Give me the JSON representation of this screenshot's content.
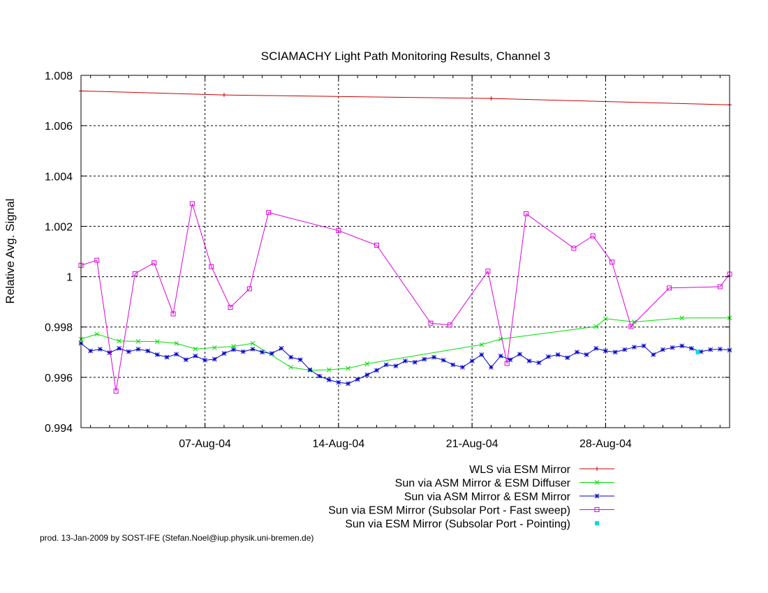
{
  "chart_data": {
    "type": "line",
    "title": "SCIAMACHY Light Path Monitoring Results, Channel 3",
    "xlabel": "",
    "ylabel": "Relative Avg. Signal",
    "xlim": [
      "2004-07-31T12:00",
      "2004-09-03T12:00"
    ],
    "ylim": [
      0.994,
      1.008
    ],
    "x_ticks": [
      "2004-08-07",
      "2004-08-14",
      "2004-08-21",
      "2004-08-28"
    ],
    "x_tick_labels": [
      "07-Aug-04",
      "14-Aug-04",
      "21-Aug-04",
      "28-Aug-04"
    ],
    "y_ticks": [
      0.994,
      0.996,
      0.998,
      1,
      1.002,
      1.004,
      1.006,
      1.008
    ],
    "y_tick_labels": [
      "0.994",
      "0.996",
      "0.998",
      "1",
      "1.002",
      "1.004",
      "1.006",
      "1.008"
    ],
    "grid": true,
    "legend_position": "bottom-right",
    "series": [
      {
        "name": "WLS via ESM Mirror",
        "color": "#cc0000",
        "marker": "plus",
        "x": [
          "2004-07-31T12:00",
          "2004-08-08T00:00",
          "2004-08-22T00:00",
          "2004-09-03T12:00"
        ],
        "y": [
          1.00738,
          1.00722,
          1.00708,
          1.00683
        ]
      },
      {
        "name": "Sun via ASM Mirror & ESM Diffuser",
        "color": "#00dd00",
        "marker": "x",
        "x": [
          "2004-07-31T12:00",
          "2004-08-01T08:00",
          "2004-08-02T12:00",
          "2004-08-03T12:00",
          "2004-08-04T12:00",
          "2004-08-05T12:00",
          "2004-08-06T12:00",
          "2004-08-07T12:00",
          "2004-08-08T12:00",
          "2004-08-09T12:00",
          "2004-08-11T12:00",
          "2004-08-12T12:00",
          "2004-08-13T12:00",
          "2004-08-14T12:00",
          "2004-08-15T12:00",
          "2004-08-21T12:00",
          "2004-08-22T12:00",
          "2004-08-27T12:00",
          "2004-08-28T00:00",
          "2004-08-29T12:00",
          "2004-09-01T00:00",
          "2004-09-03T12:00"
        ],
        "y": [
          0.99752,
          0.99772,
          0.99744,
          0.99743,
          0.99742,
          0.99735,
          0.99713,
          0.99718,
          0.99723,
          0.99735,
          0.9964,
          0.99628,
          0.9963,
          0.99636,
          0.99654,
          0.9973,
          0.99752,
          0.99802,
          0.99833,
          0.9982,
          0.99836,
          0.99836
        ]
      },
      {
        "name": "Sun via ASM Mirror & ESM Mirror",
        "color": "#0000cc",
        "marker": "star",
        "x": [
          "2004-07-31T12:00",
          "2004-08-01T00:00",
          "2004-08-01T12:00",
          "2004-08-02T00:00",
          "2004-08-02T12:00",
          "2004-08-03T00:00",
          "2004-08-03T12:00",
          "2004-08-04T00:00",
          "2004-08-04T12:00",
          "2004-08-05T00:00",
          "2004-08-05T12:00",
          "2004-08-06T00:00",
          "2004-08-06T12:00",
          "2004-08-07T00:00",
          "2004-08-07T12:00",
          "2004-08-08T00:00",
          "2004-08-08T12:00",
          "2004-08-09T00:00",
          "2004-08-09T12:00",
          "2004-08-10T00:00",
          "2004-08-10T12:00",
          "2004-08-11T00:00",
          "2004-08-11T12:00",
          "2004-08-12T00:00",
          "2004-08-12T12:00",
          "2004-08-13T00:00",
          "2004-08-13T12:00",
          "2004-08-14T00:00",
          "2004-08-14T12:00",
          "2004-08-15T00:00",
          "2004-08-15T12:00",
          "2004-08-16T00:00",
          "2004-08-16T12:00",
          "2004-08-17T00:00",
          "2004-08-17T12:00",
          "2004-08-18T00:00",
          "2004-08-18T12:00",
          "2004-08-19T00:00",
          "2004-08-19T12:00",
          "2004-08-20T00:00",
          "2004-08-20T12:00",
          "2004-08-21T00:00",
          "2004-08-21T12:00",
          "2004-08-22T00:00",
          "2004-08-22T12:00",
          "2004-08-23T00:00",
          "2004-08-23T12:00",
          "2004-08-24T00:00",
          "2004-08-24T12:00",
          "2004-08-25T00:00",
          "2004-08-25T12:00",
          "2004-08-26T00:00",
          "2004-08-26T12:00",
          "2004-08-27T00:00",
          "2004-08-27T12:00",
          "2004-08-28T00:00",
          "2004-08-28T12:00",
          "2004-08-29T00:00",
          "2004-08-29T12:00",
          "2004-08-30T00:00",
          "2004-08-30T12:00",
          "2004-08-31T00:00",
          "2004-08-31T12:00",
          "2004-09-01T00:00",
          "2004-09-01T12:00",
          "2004-09-02T00:00",
          "2004-09-02T12:00",
          "2004-09-03T00:00",
          "2004-09-03T12:00"
        ],
        "y": [
          0.99735,
          0.99705,
          0.99712,
          0.99698,
          0.99715,
          0.99702,
          0.99712,
          0.99705,
          0.9969,
          0.9968,
          0.99692,
          0.9967,
          0.99685,
          0.99668,
          0.99672,
          0.99695,
          0.9971,
          0.99702,
          0.99712,
          0.997,
          0.99695,
          0.99715,
          0.9968,
          0.9967,
          0.9963,
          0.99605,
          0.9959,
          0.9958,
          0.99575,
          0.99592,
          0.9961,
          0.99628,
          0.9965,
          0.99645,
          0.99665,
          0.9966,
          0.99672,
          0.9968,
          0.99668,
          0.9965,
          0.9964,
          0.99665,
          0.9969,
          0.9964,
          0.99685,
          0.9967,
          0.99692,
          0.99665,
          0.99658,
          0.99682,
          0.9969,
          0.99678,
          0.997,
          0.9969,
          0.99715,
          0.99705,
          0.997,
          0.9971,
          0.9972,
          0.99725,
          0.9969,
          0.9971,
          0.99718,
          0.99725,
          0.99715,
          0.99702,
          0.9971,
          0.99712,
          0.99708
        ]
      },
      {
        "name": "Sun via ESM Mirror (Subsolar Port - Fast sweep)",
        "color": "#dd00dd",
        "marker": "square",
        "x": [
          "2004-07-31T12:00",
          "2004-08-01T08:00",
          "2004-08-02T08:00",
          "2004-08-03T08:00",
          "2004-08-04T08:00",
          "2004-08-05T08:00",
          "2004-08-06T08:00",
          "2004-08-07T08:00",
          "2004-08-08T08:00",
          "2004-08-09T08:00",
          "2004-08-10T08:00",
          "2004-08-14T00:00",
          "2004-08-16T00:00",
          "2004-08-18T20:00",
          "2004-08-19T20:00",
          "2004-08-21T20:00",
          "2004-08-22T20:00",
          "2004-08-23T20:00",
          "2004-08-26T08:00",
          "2004-08-27T08:00",
          "2004-08-28T08:00",
          "2004-08-29T08:00",
          "2004-08-31T08:00",
          "2004-09-03T00:00",
          "2004-09-03T12:00"
        ],
        "y": [
          1.00045,
          1.00065,
          0.99545,
          1.00012,
          1.00055,
          0.99852,
          1.0029,
          1.0004,
          0.99878,
          0.99952,
          1.00255,
          1.00183,
          1.00125,
          0.99815,
          0.99808,
          1.00022,
          0.99655,
          1.0025,
          1.00113,
          1.00162,
          1.00058,
          0.99802,
          0.99955,
          0.9996,
          1.0001
        ]
      },
      {
        "name": "Sun via ESM Mirror (Subsolar Port - Pointing)",
        "color": "#00dddd",
        "marker": "dot",
        "x": [
          "2004-09-01T20:00"
        ],
        "y": [
          0.997
        ]
      }
    ],
    "footer": "prod. 13-Jan-2009 by SOST-IFE (Stefan.Noel@iup.physik.uni-bremen.de)"
  }
}
